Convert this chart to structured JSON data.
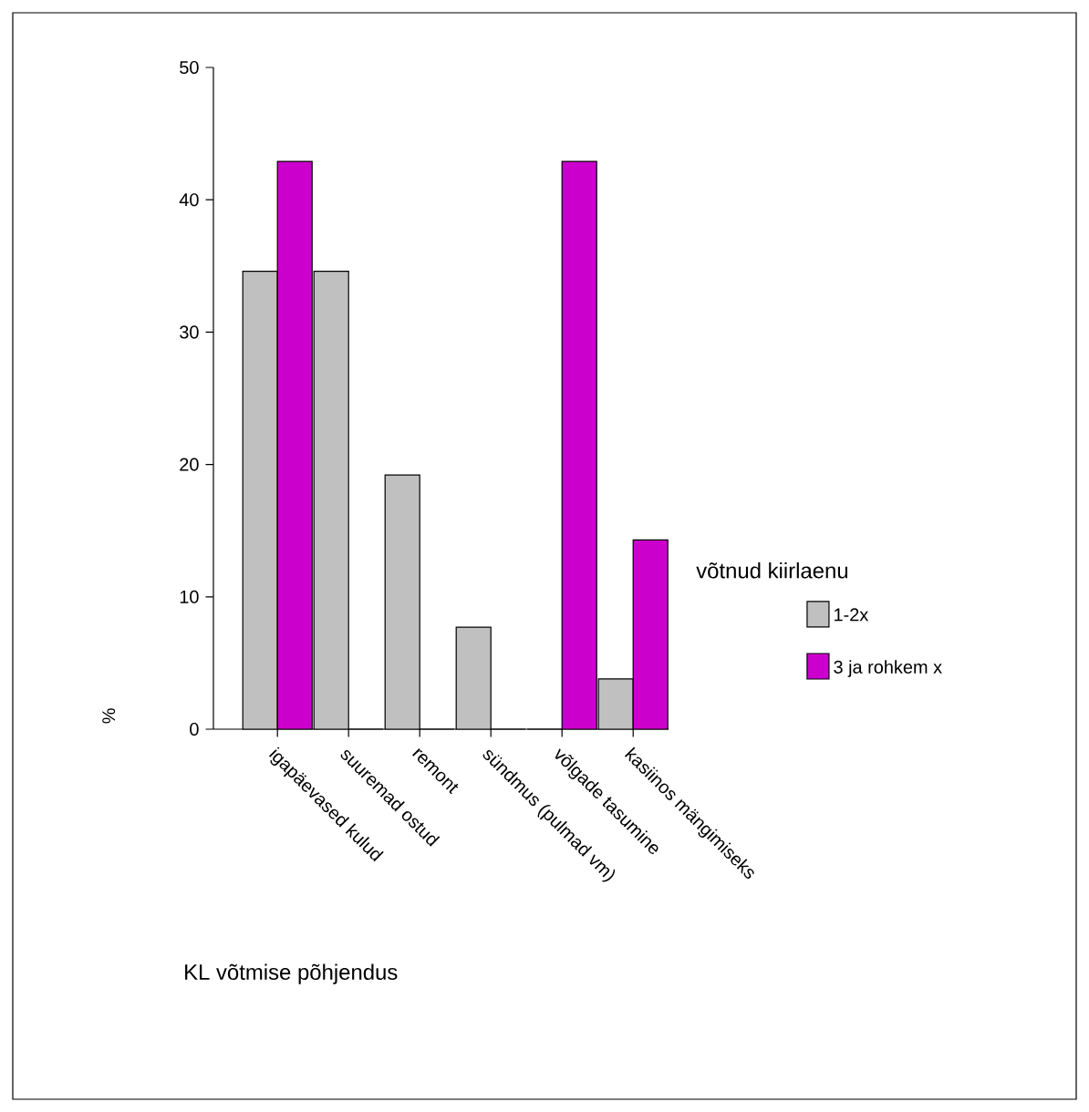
{
  "chart_data": {
    "type": "bar",
    "categories": [
      "igapäevased kulud",
      "suuremad ostud",
      "remont",
      "sündmus (pulmad vm)",
      "võlgade tasumine",
      "kasiinos mängimiseks"
    ],
    "series": [
      {
        "name": "1-2x",
        "color": "#c0c0c0",
        "values": [
          34.6,
          34.6,
          19.2,
          7.7,
          0,
          3.8
        ]
      },
      {
        "name": "3 ja rohkem x",
        "color": "#cc00cc",
        "values": [
          42.9,
          0,
          0,
          0,
          42.9,
          14.3
        ]
      }
    ],
    "ylim": [
      0,
      50
    ],
    "yticks": [
      0,
      10,
      20,
      30,
      40,
      50
    ],
    "xlabel": "KL võtmise põhjendus",
    "ylabel": "%",
    "legend_title": "võtnud kiirlaenu",
    "legend": "right"
  }
}
